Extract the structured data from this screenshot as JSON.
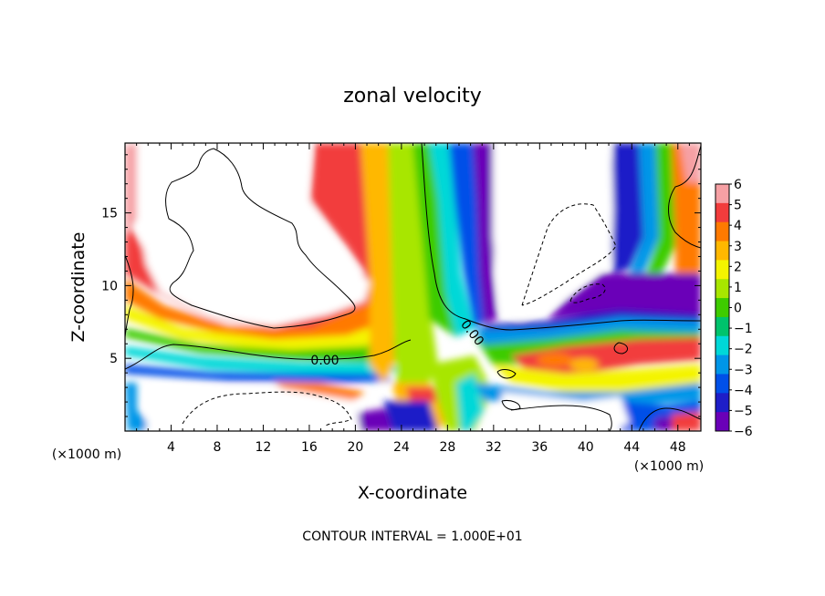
{
  "chart_data": {
    "type": "heatmap",
    "title": "zonal velocity",
    "xlabel": "X-coordinate",
    "ylabel": "Z-coordinate",
    "x_unit": "(×1000 m)",
    "y_unit": "(×1000 m)",
    "xlim": [
      0,
      50
    ],
    "ylim": [
      0,
      19.8
    ],
    "x_ticks": [
      4,
      8,
      12,
      16,
      20,
      24,
      28,
      32,
      36,
      40,
      44,
      48
    ],
    "x_tick_labels": [
      "4",
      "8",
      "12",
      "16",
      "20",
      "24",
      "28",
      "32",
      "36",
      "40",
      "44",
      "48"
    ],
    "y_ticks": [
      5,
      10,
      15
    ],
    "y_tick_labels": [
      "5",
      "10",
      "15"
    ],
    "colorbar": {
      "levels": [
        6,
        5,
        4,
        3,
        2,
        1,
        0,
        -1,
        -2,
        -3,
        -4,
        -5,
        -6
      ],
      "labels": [
        "6",
        "5",
        "4",
        "3",
        "2",
        "1",
        "0",
        "−1",
        "−2",
        "−3",
        "−4",
        "−5",
        "−6"
      ],
      "colors": [
        "#f6a0a4",
        "#f23c3c",
        "#ff7a00",
        "#ffb800",
        "#f4f400",
        "#a8e600",
        "#3ecc00",
        "#00c36c",
        "#00d8d8",
        "#0096e8",
        "#0050e8",
        "#1e1ec8",
        "#6a00b8"
      ]
    },
    "contour_labels": [
      "0.00",
      "0.00"
    ],
    "footnote": "CONTOUR INTERVAL = 1.000E+01"
  }
}
